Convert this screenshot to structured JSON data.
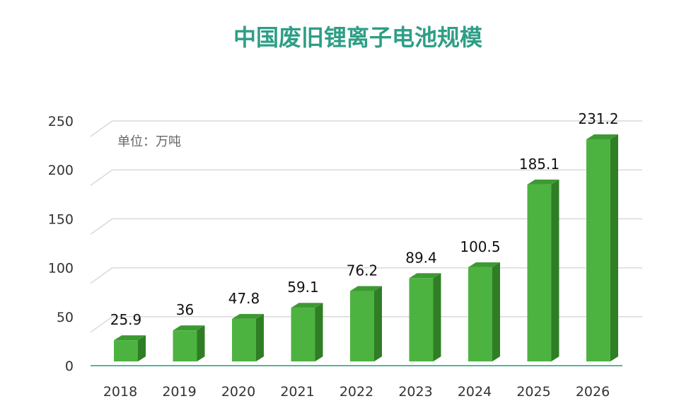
{
  "colors": {
    "title": "#2e9e86",
    "bar_front": "#4db340",
    "bar_side": "#2f7d25",
    "bar_top": "#3d9a32",
    "grid": "#d9d9d9",
    "baseline": "#5bb39a"
  },
  "chart_data": {
    "type": "bar",
    "title": "中国废旧锂离子电池规模",
    "unit_label": "单位：万吨",
    "categories": [
      "2018",
      "2019",
      "2020",
      "2021",
      "2022",
      "2023",
      "2024",
      "2025",
      "2026"
    ],
    "values": [
      25.9,
      36,
      47.8,
      59.1,
      76.2,
      89.4,
      100.5,
      185.1,
      231.2
    ],
    "value_labels": [
      "25.9",
      "36",
      "47.8",
      "59.1",
      "76.2",
      "89.4",
      "100.5",
      "185.1",
      "231.2"
    ],
    "yticks": [
      "0",
      "50",
      "100",
      "150",
      "200",
      "250"
    ],
    "ylim": [
      0,
      250
    ],
    "grid": true,
    "legend": "none"
  }
}
